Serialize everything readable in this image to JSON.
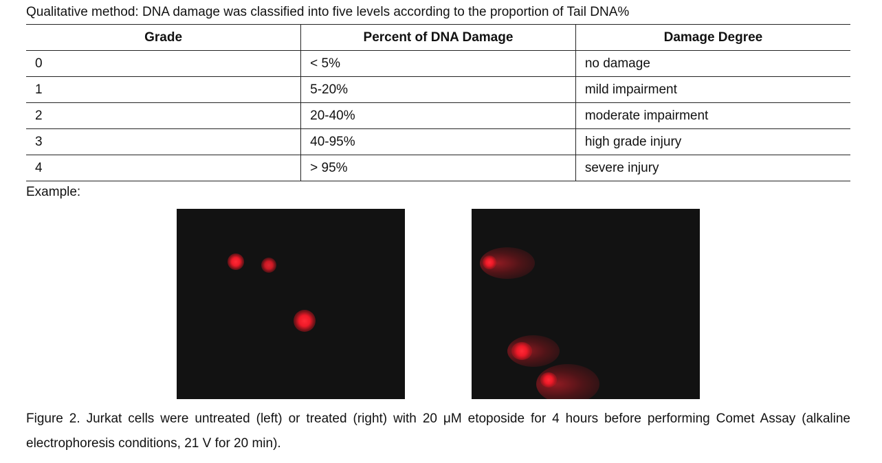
{
  "intro": "Qualitative method: DNA damage was classified into five levels according to the proportion of Tail DNA%",
  "table": {
    "headers": [
      "Grade",
      "Percent of DNA Damage",
      "Damage Degree"
    ],
    "rows": [
      [
        "0",
        "< 5%",
        "no damage"
      ],
      [
        "1",
        "5-20%",
        "mild impairment"
      ],
      [
        "2",
        "20-40%",
        "moderate impairment"
      ],
      [
        "3",
        "40-95%",
        "high grade injury"
      ],
      [
        "4",
        "> 95%",
        "severe injury"
      ]
    ]
  },
  "example_label": "Example:",
  "figure": {
    "left_image": "untreated-jurkat-comet-micrograph",
    "right_image": "etoposide-treated-jurkat-comet-micrograph",
    "stain_color": "#e8192c",
    "background_color": "#121212",
    "caption": "Figure 2. Jurkat cells were untreated (left) or treated (right) with 20 μM etoposide for 4 hours before performing Comet Assay (alkaline electrophoresis conditions, 21 V for 20 min)."
  }
}
